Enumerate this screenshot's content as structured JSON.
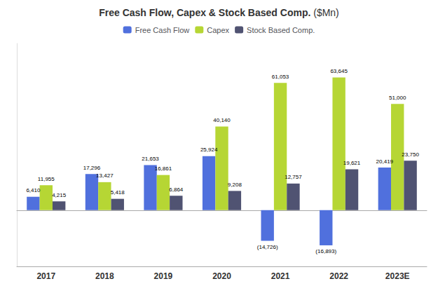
{
  "chart_data": {
    "type": "bar",
    "title": "Free Cash Flow, Capex & Stock Based Comp. ($Mn)",
    "categories": [
      "2017",
      "2018",
      "2019",
      "2020",
      "2021",
      "2022",
      "2023E"
    ],
    "series": [
      {
        "name": "Free Cash Flow",
        "values": [
          6410,
          17296,
          21653,
          25924,
          -14726,
          -16893,
          20419
        ],
        "value_labels": [
          "6,410",
          "17,296",
          "21,653",
          "25,924",
          "(14,726)",
          "(16,893)",
          "20,419"
        ]
      },
      {
        "name": "Capex",
        "values": [
          11955,
          13427,
          16861,
          40140,
          61053,
          63645,
          51000
        ],
        "value_labels": [
          "11,955",
          "13,427",
          "16,861",
          "40,140",
          "61,053",
          "63,645",
          "51,000"
        ]
      },
      {
        "name": "Stock Based Comp.",
        "values": [
          4215,
          5418,
          6864,
          9208,
          12757,
          19621,
          23750
        ],
        "value_labels": [
          "4,215",
          "5,418",
          "6,864",
          "9,208",
          "12,757",
          "19,621",
          "23,750"
        ]
      }
    ],
    "ylim": [
      -27000,
      80000
    ],
    "grid": false,
    "legend": "top",
    "data_labels": true,
    "tick_labels": "x"
  }
}
